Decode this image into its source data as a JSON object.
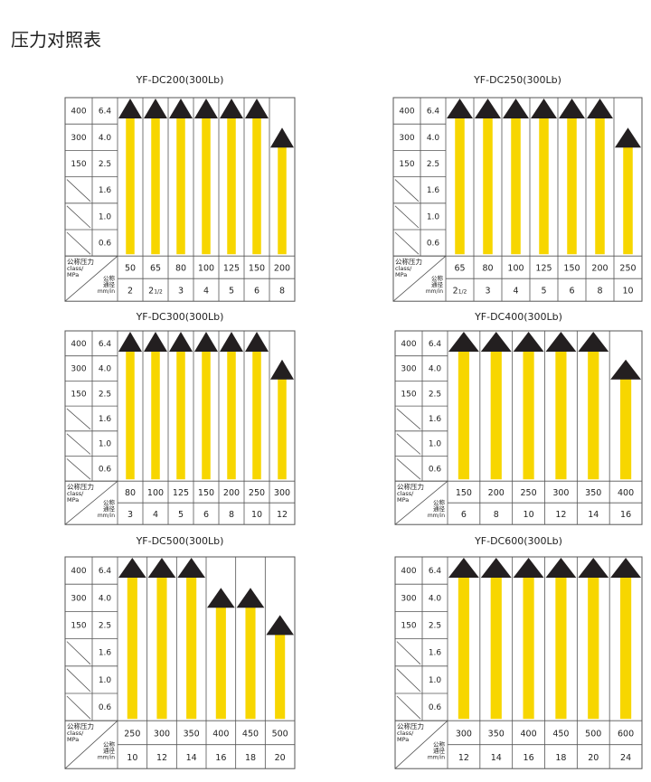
{
  "page_title": "压力对照表",
  "colors": {
    "arrow_head": "#231f20",
    "bar": "#f7d600",
    "grid": "#555555"
  },
  "row_labels": {
    "class": [
      "400",
      "300",
      "150",
      "",
      "",
      ""
    ],
    "mpa": [
      "6.4",
      "4.0",
      "2.5",
      "1.6",
      "1.0",
      "0.6"
    ]
  },
  "header_cell": {
    "pressure_label": "公称压力",
    "class_label": "class/",
    "mpa_label": "MPa",
    "diameter_label_1": "公称",
    "diameter_label_2": "通径",
    "unit_label": "mm/in"
  },
  "tables": [
    {
      "title": "YF-DC200(300Lb)",
      "mm": [
        "50",
        "65",
        "80",
        "100",
        "125",
        "150",
        "200"
      ],
      "inch": [
        "2",
        "2 1/2",
        "3",
        "4",
        "5",
        "6",
        "8"
      ],
      "max_mpa": [
        "6.4",
        "6.4",
        "6.4",
        "6.4",
        "6.4",
        "6.4",
        "4.0"
      ]
    },
    {
      "title": "YF-DC250(300Lb)",
      "mm": [
        "65",
        "80",
        "100",
        "125",
        "150",
        "200",
        "250"
      ],
      "inch": [
        "2 1/2",
        "3",
        "4",
        "5",
        "6",
        "8",
        "10"
      ],
      "max_mpa": [
        "6.4",
        "6.4",
        "6.4",
        "6.4",
        "6.4",
        "6.4",
        "4.0"
      ]
    },
    {
      "title": "YF-DC300(300Lb)",
      "mm": [
        "80",
        "100",
        "125",
        "150",
        "200",
        "250",
        "300"
      ],
      "inch": [
        "3",
        "4",
        "5",
        "6",
        "8",
        "10",
        "12"
      ],
      "max_mpa": [
        "6.4",
        "6.4",
        "6.4",
        "6.4",
        "6.4",
        "6.4",
        "4.0"
      ]
    },
    {
      "title": "YF-DC400(300Lb)",
      "mm": [
        "150",
        "200",
        "250",
        "300",
        "350",
        "400"
      ],
      "inch": [
        "6",
        "8",
        "10",
        "12",
        "14",
        "16"
      ],
      "max_mpa": [
        "6.4",
        "6.4",
        "6.4",
        "6.4",
        "6.4",
        "4.0"
      ]
    },
    {
      "title": "YF-DC500(300Lb)",
      "mm": [
        "250",
        "300",
        "350",
        "400",
        "450",
        "500"
      ],
      "inch": [
        "10",
        "12",
        "14",
        "16",
        "18",
        "20"
      ],
      "max_mpa": [
        "6.4",
        "6.4",
        "6.4",
        "4.0",
        "4.0",
        "2.5"
      ]
    },
    {
      "title": "YF-DC600(300Lb)",
      "mm": [
        "300",
        "350",
        "400",
        "450",
        "500",
        "600"
      ],
      "inch": [
        "12",
        "14",
        "16",
        "18",
        "20",
        "24"
      ],
      "max_mpa": [
        "6.4",
        "6.4",
        "6.4",
        "6.4",
        "6.4",
        "6.4"
      ]
    }
  ]
}
